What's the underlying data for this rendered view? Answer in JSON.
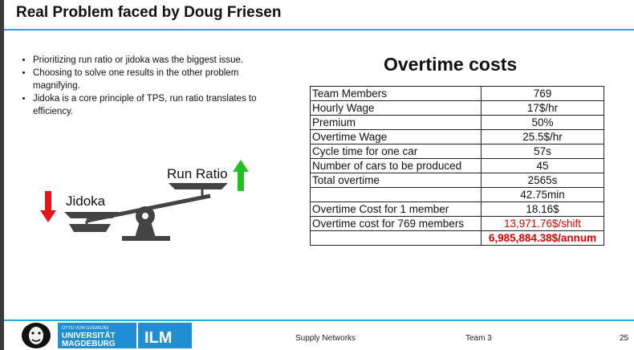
{
  "slide": {
    "title": "Real Problem faced by Doug Friesen",
    "bullets": [
      "Prioritizing run ratio or jidoka was the biggest issue.",
      "Choosing to solve one results in the other problem magnifying.",
      "Jidoka is a core principle of TPS, run ratio translates to efficiency."
    ]
  },
  "scale": {
    "left_label": "Jidoka",
    "right_label": "Run Ratio",
    "down_arrow_color": "#e8141b",
    "up_arrow_color": "#22c122"
  },
  "table": {
    "title": "Overtime costs",
    "rows": [
      {
        "label": "Team Members",
        "value": "769"
      },
      {
        "label": "Hourly Wage",
        "value": "17$/hr"
      },
      {
        "label": "Premium",
        "value": "50%"
      },
      {
        "label": "Overtime Wage",
        "value": "25.5$/hr"
      },
      {
        "label": "Cycle time for one car",
        "value": "57s"
      },
      {
        "label": "Number of cars to be produced",
        "value": "45"
      },
      {
        "label": "Total overtime",
        "value": "2565s"
      },
      {
        "label": "",
        "value": "42.75min"
      },
      {
        "label": "Overtime Cost for 1 member",
        "value": "18.16$"
      },
      {
        "label": "Overtime cost for 769 members",
        "value": "13,971.76$/shift"
      },
      {
        "label": "",
        "value": "6,985,884.38$/annum"
      }
    ]
  },
  "footer": {
    "logo_text_top": "OTTO VON GUERICKE",
    "logo_text_mid": "UNIVERSITÄT",
    "logo_text_bottom": "MAGDEBURG",
    "logo_ilm": "ILM",
    "course": "Supply Networks",
    "team": "Team 3",
    "page": "25"
  },
  "colors": {
    "accent_line": "#2aa9e0",
    "logo_blue": "#1f8fd1",
    "highlight_red": "#e00000"
  }
}
